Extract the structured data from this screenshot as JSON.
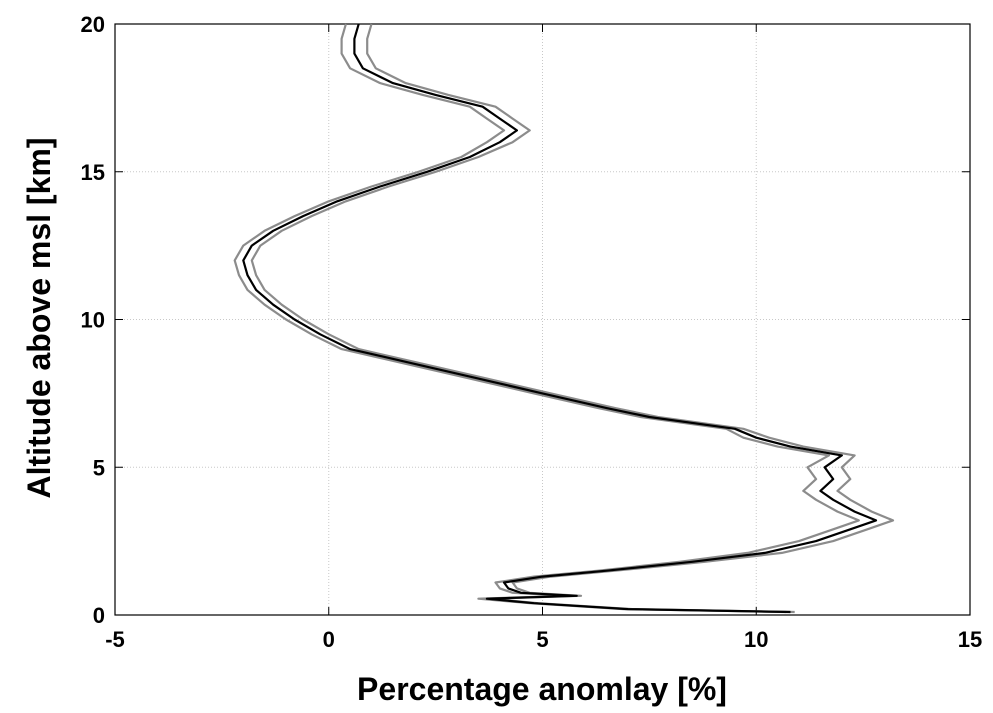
{
  "chart_data": {
    "type": "line",
    "xlabel": "Percentage anomlay [%]",
    "ylabel": "Altitude above msl [km]",
    "xlim": [
      -5,
      15
    ],
    "xticks": [
      -5,
      0,
      5,
      10,
      15
    ],
    "ylim": [
      0,
      20
    ],
    "yticks": [
      0,
      5,
      10,
      15,
      20
    ],
    "grid": true,
    "y": [
      0.1,
      0.2,
      0.4,
      0.55,
      0.65,
      0.75,
      0.9,
      1.1,
      1.3,
      1.5,
      1.8,
      2.1,
      2.5,
      2.9,
      3.2,
      3.5,
      3.9,
      4.2,
      4.6,
      5.0,
      5.4,
      5.7,
      6.0,
      6.3,
      6.7,
      7.0,
      7.5,
      8.0,
      8.5,
      9.0,
      9.5,
      10,
      10.5,
      11,
      11.5,
      12,
      12.5,
      13,
      13.5,
      14,
      14.5,
      15,
      15.5,
      16,
      16.4,
      16.8,
      17.2,
      17.6,
      18,
      18.5,
      19,
      19.5,
      20
    ],
    "series": [
      {
        "color": "#8c8c8c",
        "values": [
          10.9,
          7.1,
          4.9,
          3.8,
          5.9,
          4.7,
          4.4,
          4.3,
          5.2,
          6.7,
          8.8,
          10.6,
          11.8,
          12.6,
          13.2,
          12.7,
          12.2,
          11.9,
          12.2,
          12.0,
          12.3,
          11.1,
          10.3,
          9.7,
          7.7,
          6.7,
          5.2,
          3.7,
          2.2,
          0.7,
          0,
          -0.6,
          -1.1,
          -1.5,
          -1.7,
          -1.8,
          -1.6,
          -1.1,
          -0.4,
          0.4,
          1.4,
          2.5,
          3.5,
          4.3,
          4.7,
          4.3,
          3.9,
          2.8,
          1.8,
          1.1,
          0.9,
          0.9,
          1.0
        ]
      },
      {
        "color": "#8c8c8c",
        "values": [
          10.7,
          6.9,
          4.7,
          3.5,
          5.6,
          4.3,
          4.0,
          3.9,
          4.8,
          6.3,
          8.2,
          9.8,
          11.0,
          11.8,
          12.4,
          11.9,
          11.4,
          11.1,
          11.4,
          11.2,
          11.7,
          10.5,
          9.7,
          9.3,
          7.3,
          6.3,
          4.8,
          3.3,
          1.8,
          0.3,
          -0.4,
          -1.0,
          -1.5,
          -1.9,
          -2.1,
          -2.2,
          -2.0,
          -1.5,
          -0.8,
          0,
          1.0,
          2.1,
          3.1,
          3.7,
          4.1,
          3.7,
          3.3,
          2.2,
          1.2,
          0.5,
          0.3,
          0.3,
          0.4
        ]
      },
      {
        "color": "#000000",
        "values": [
          10.8,
          7,
          4.8,
          3.7,
          5.8,
          4.5,
          4.2,
          4.1,
          5,
          6.5,
          8.5,
          10.2,
          11.4,
          12.2,
          12.8,
          12.3,
          11.8,
          11.5,
          11.8,
          11.6,
          12.0,
          10.8,
          10,
          9.5,
          7.5,
          6.5,
          5,
          3.5,
          2,
          0.5,
          -0.2,
          -0.8,
          -1.3,
          -1.7,
          -1.9,
          -2.0,
          -1.8,
          -1.3,
          -0.6,
          0.2,
          1.2,
          2.3,
          3.3,
          4.0,
          4.4,
          4.0,
          3.6,
          2.5,
          1.5,
          0.8,
          0.6,
          0.6,
          0.7
        ]
      }
    ]
  }
}
